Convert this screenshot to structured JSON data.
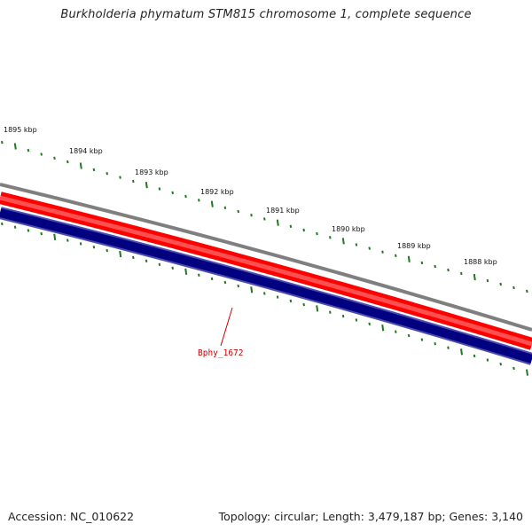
{
  "title": "Burkholderia phymatum STM815 chromosome 1, complete sequence",
  "footer": {
    "accession": "Accession: NC_010622",
    "summary": "Topology: circular; Length: 3,479,187 bp; Genes: 3,140"
  },
  "scale_labels": [
    "1895 kbp",
    "1894 kbp",
    "1893 kbp",
    "1892 kbp",
    "1891 kbp",
    "1890 kbp",
    "1889 kbp",
    "1888 kbp"
  ],
  "gene_label": "Bphy_1672",
  "colors": {
    "backbone": "#7f7f7f",
    "forward_strand": "#ff0000",
    "forward_strand_inner": "#ff5555",
    "reverse_strand": "#000080",
    "reverse_strand_edge": "#4b4bb0",
    "ticks": "#1e7a1e",
    "gene_label": "#cc0000"
  }
}
